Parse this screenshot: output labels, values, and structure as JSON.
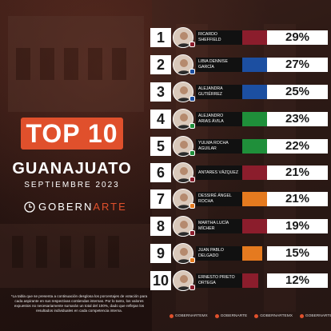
{
  "header": {
    "badge": "TOP 10",
    "state": "GUANAJUATO",
    "date": "SEPTIEMBRE 2023",
    "brand_part1": "GOBERN",
    "brand_part2": "ARTE"
  },
  "colors": {
    "accent": "#e0502c",
    "pan": "#1c4fa1",
    "morena": "#8b1d2c",
    "pri": "#1f8f3a",
    "mc": "#e57a1f"
  },
  "candidates": [
    {
      "rank": "1",
      "name_line1": "RICARDO",
      "name_line2": "SHEFFIELD",
      "percent": 29,
      "percent_label": "29%",
      "party_color": "#8b1d2c",
      "party_icon": "morena-logo-icon"
    },
    {
      "rank": "2",
      "name_line1": "LIBIA DENNISE",
      "name_line2": "GARCÍA",
      "percent": 27,
      "percent_label": "27%",
      "party_color": "#1c4fa1",
      "party_icon": "pan-logo-icon"
    },
    {
      "rank": "3",
      "name_line1": "ALEJANDRA",
      "name_line2": "GUTIÉRREZ",
      "percent": 25,
      "percent_label": "25%",
      "party_color": "#1c4fa1",
      "party_icon": "pan-logo-icon"
    },
    {
      "rank": "4",
      "name_line1": "ALEJANDRO",
      "name_line2": "ARIAS ÁVILA",
      "percent": 23,
      "percent_label": "23%",
      "party_color": "#1f8f3a",
      "party_icon": "pri-logo-icon"
    },
    {
      "rank": "5",
      "name_line1": "YULMA ROCHA",
      "name_line2": "AGUILAR",
      "percent": 22,
      "percent_label": "22%",
      "party_color": "#1f8f3a",
      "party_icon": "pri-logo-icon"
    },
    {
      "rank": "6",
      "name_line1": "ANTARES VÁZQUEZ",
      "name_line2": "",
      "percent": 21,
      "percent_label": "21%",
      "party_color": "#8b1d2c",
      "party_icon": "morena-logo-icon"
    },
    {
      "rank": "7",
      "name_line1": "DESSIRÉ ÁNGEL",
      "name_line2": "ROCHA",
      "percent": 21,
      "percent_label": "21%",
      "party_color": "#e57a1f",
      "party_icon": "mc-logo-icon"
    },
    {
      "rank": "8",
      "name_line1": "MARTHA LUCÍA",
      "name_line2": "MÍCHER",
      "percent": 19,
      "percent_label": "19%",
      "party_color": "#8b1d2c",
      "party_icon": "morena-logo-icon"
    },
    {
      "rank": "9",
      "name_line1": "JUAN PABLO",
      "name_line2": "DELGADO",
      "percent": 15,
      "percent_label": "15%",
      "party_color": "#e57a1f",
      "party_icon": "mc-logo-icon"
    },
    {
      "rank": "10",
      "name_line1": "ERNESTO PRIETO",
      "name_line2": "ORTEGA",
      "percent": 12,
      "percent_label": "12%",
      "party_color": "#8b1d2c",
      "party_icon": "morena-logo-icon"
    }
  ],
  "footnote": "*La tabla que se presenta a continuación desglosa los porcentajes de votación para cada aspirante en sus respectivas contiendas internas. Por lo tanto, los valores expuestos no necesariamente sumarán un total del 100%, dado que reflejan los resultados individuales en cada competencia interna.",
  "social": [
    {
      "icon": "facebook-icon",
      "handle": "GOBERNARTEMX"
    },
    {
      "icon": "x-icon",
      "handle": "GOBERNARTE"
    },
    {
      "icon": "instagram-icon",
      "handle": "GOBERNARTEMX"
    },
    {
      "icon": "tiktok-icon",
      "handle": "GOBERNARTE"
    }
  ]
}
